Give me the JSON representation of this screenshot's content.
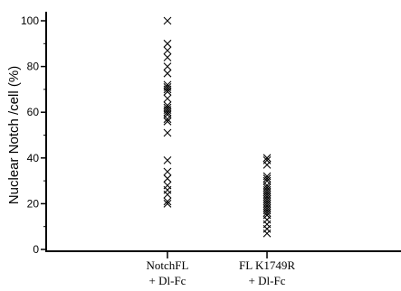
{
  "chart_data": {
    "type": "scatter",
    "title": "",
    "xlabel": "",
    "ylabel": "Nuclear Notch /cell (%)",
    "ylim": [
      0,
      100
    ],
    "yticks": [
      0,
      20,
      40,
      60,
      80,
      100
    ],
    "yticklabels": [
      "0",
      "20",
      "40",
      "60",
      "80",
      "100"
    ],
    "categories": [
      {
        "line1": "NotchFL",
        "line2": "+ Dl-Fc"
      },
      {
        "line1": "FL K1749R",
        "line2": "+ Dl-Fc"
      }
    ],
    "marker": "x",
    "color": "#000000",
    "series": [
      {
        "category_index": 0,
        "values": [
          100,
          90,
          87,
          84,
          80,
          77,
          72,
          71,
          70,
          69,
          66,
          63,
          62,
          61,
          60,
          59,
          57,
          56,
          51,
          39,
          34,
          31,
          28,
          26,
          24,
          21,
          20
        ]
      },
      {
        "category_index": 1,
        "values": [
          40,
          39,
          37,
          32,
          31,
          30,
          28,
          27,
          26,
          25,
          24,
          23,
          22,
          21,
          20,
          19,
          18,
          17,
          16,
          15,
          13,
          11,
          9,
          7
        ]
      }
    ]
  }
}
